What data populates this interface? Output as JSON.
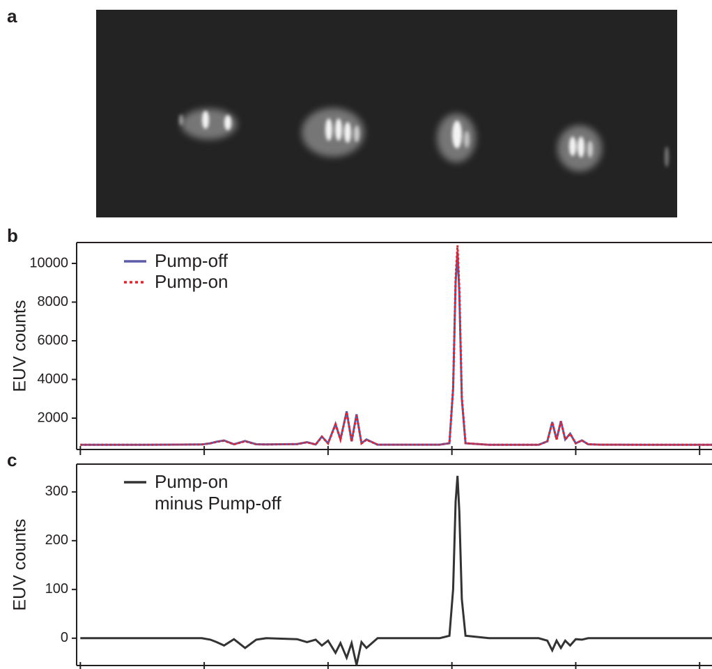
{
  "chart_data": [
    {
      "type": "image",
      "panel_label": "a"
    },
    {
      "type": "line",
      "panel_label": "b",
      "ylabel": "EUV counts",
      "x": [
        0,
        0.5,
        0.98,
        1.05,
        1.1,
        1.16,
        1.24,
        1.33,
        1.42,
        1.5,
        1.75,
        1.83,
        1.9,
        1.95,
        2.0,
        2.06,
        2.1,
        2.15,
        2.19,
        2.23,
        2.27,
        2.31,
        2.4,
        2.9,
        2.98,
        3.01,
        3.03,
        3.045,
        3.06,
        3.08,
        3.11,
        3.3,
        3.7,
        3.77,
        3.81,
        3.845,
        3.88,
        3.915,
        3.955,
        4.0,
        4.05,
        4.1,
        4.2,
        4.6,
        5.1
      ],
      "series": [
        {
          "name": "Pump-off",
          "color": "#5b5ba8",
          "line_style": "solid",
          "values": [
            620,
            620,
            640,
            700,
            780,
            850,
            650,
            820,
            650,
            640,
            660,
            760,
            640,
            1050,
            700,
            1700,
            900,
            2350,
            800,
            2200,
            700,
            900,
            630,
            630,
            700,
            3500,
            9000,
            10600,
            8500,
            3000,
            700,
            620,
            620,
            800,
            1800,
            900,
            1850,
            900,
            1200,
            700,
            850,
            650,
            630,
            620,
            620
          ]
        },
        {
          "name": "Pump-on",
          "color": "#e8202a",
          "line_style": "dotted",
          "values": [
            620,
            620,
            640,
            697,
            772,
            835,
            648,
            800,
            647,
            640,
            658,
            752,
            637,
            1035,
            695,
            1670,
            890,
            2310,
            790,
            2145,
            692,
            880,
            630,
            630,
            705,
            3600,
            9280,
            10933,
            8760,
            3080,
            705,
            620,
            620,
            795,
            1775,
            895,
            1830,
            895,
            1185,
            698,
            847,
            650,
            630,
            620,
            620
          ]
        }
      ],
      "xlim": [
        -0.03,
        5.1
      ],
      "xticks": [
        0,
        1,
        2,
        3,
        4,
        5
      ],
      "ylim": [
        380,
        11080
      ],
      "yticks": [
        2000,
        4000,
        6000,
        8000,
        10000
      ]
    },
    {
      "type": "line",
      "panel_label": "c",
      "ylabel": "EUV counts",
      "x": [
        0,
        0.5,
        0.98,
        1.05,
        1.1,
        1.16,
        1.24,
        1.33,
        1.42,
        1.5,
        1.75,
        1.83,
        1.9,
        1.95,
        2.0,
        2.06,
        2.1,
        2.15,
        2.19,
        2.23,
        2.27,
        2.31,
        2.4,
        2.9,
        2.98,
        3.01,
        3.03,
        3.045,
        3.06,
        3.08,
        3.11,
        3.3,
        3.7,
        3.77,
        3.81,
        3.845,
        3.88,
        3.915,
        3.955,
        4.0,
        4.05,
        4.1,
        4.2,
        4.6,
        5.1
      ],
      "series": [
        {
          "name": "Pump-on\nminus Pump-off",
          "color": "#333333",
          "line_style": "solid",
          "values": [
            0,
            0,
            0,
            -3,
            -8,
            -15,
            -2,
            -20,
            -3,
            0,
            -2,
            -8,
            -3,
            -15,
            -5,
            -30,
            -10,
            -40,
            -10,
            -55,
            -8,
            -20,
            0,
            0,
            5,
            100,
            280,
            333,
            260,
            80,
            5,
            0,
            0,
            -5,
            -25,
            -5,
            -20,
            -5,
            -15,
            -2,
            -3,
            0,
            0,
            0,
            0
          ]
        }
      ],
      "xlim": [
        -0.03,
        5.1
      ],
      "xticks": [
        0,
        1,
        2,
        3,
        4,
        5
      ],
      "ylim": [
        -56,
        357
      ],
      "yticks": [
        0,
        100,
        200,
        300
      ]
    }
  ]
}
